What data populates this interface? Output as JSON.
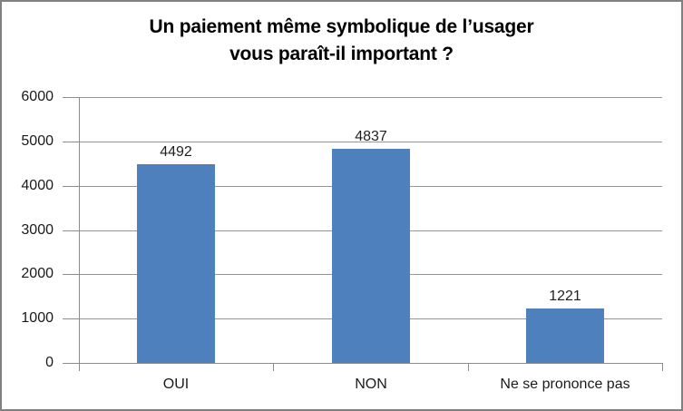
{
  "chart_data": {
    "type": "bar",
    "title": "Un paiement même symbolique de l’usager vous paraît-il important ?",
    "title_lines": [
      "Un paiement même symbolique de l’usager",
      "vous paraît-il important ?"
    ],
    "categories": [
      "OUI",
      "NON",
      "Ne se prononce pas"
    ],
    "values": [
      4492,
      4837,
      1221
    ],
    "data_labels": [
      "4492",
      "4837",
      "1221"
    ],
    "xlabel": "",
    "ylabel": "",
    "ylim": [
      0,
      6000
    ],
    "ytick_step": 1000,
    "yticks": [
      0,
      1000,
      2000,
      3000,
      4000,
      5000,
      6000
    ],
    "grid": "horizontal-major",
    "legend": "none",
    "bar_gap_ratio": 0.6,
    "colors": {
      "bar": "#4d80bc",
      "gridline": "#969696",
      "axis": "#8c8c8c",
      "chart_border": "#808080",
      "text": "#1a1a1a",
      "title_text": "#000000",
      "background": "#ffffff"
    }
  }
}
